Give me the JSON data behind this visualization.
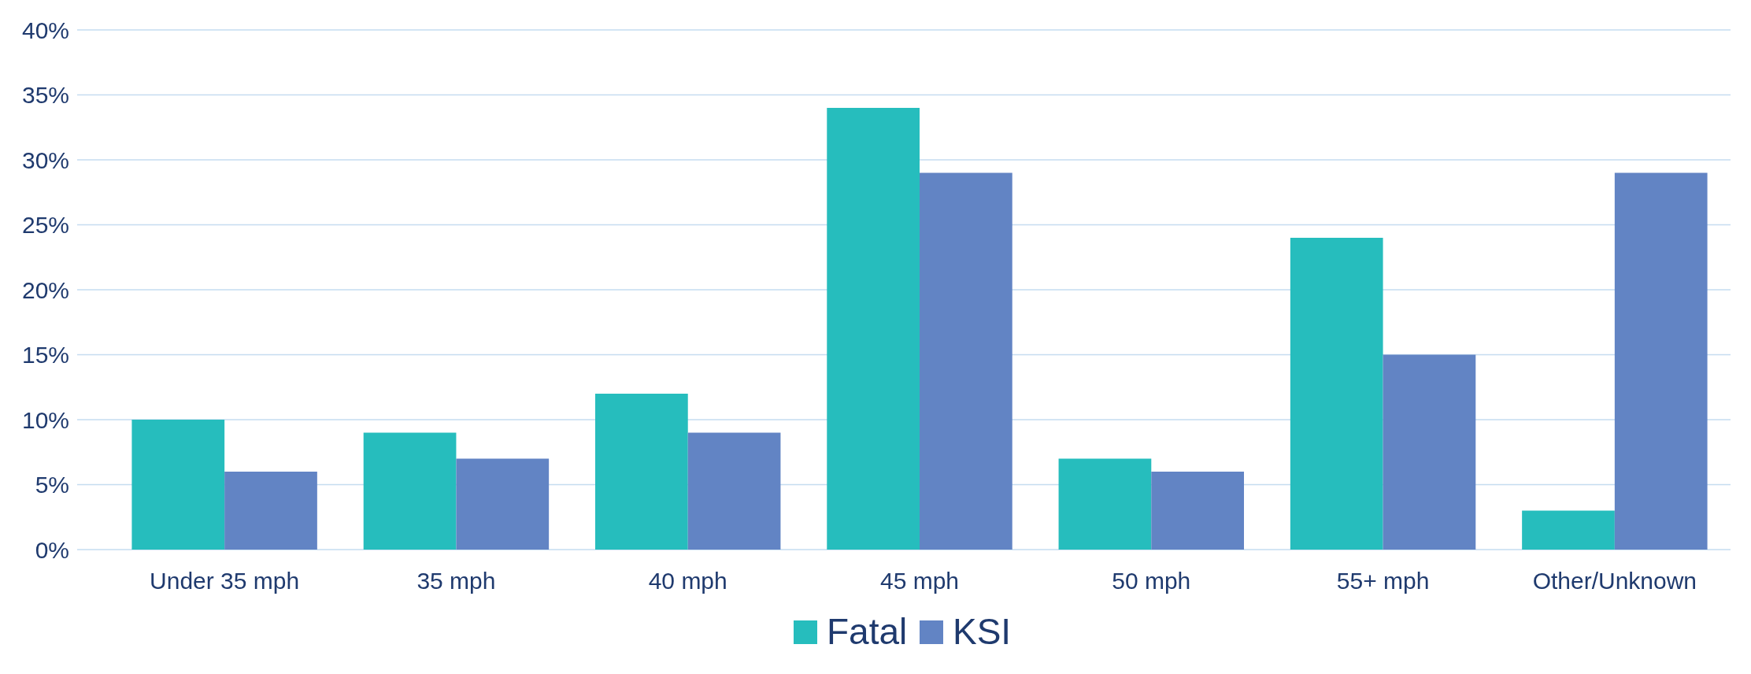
{
  "chart_data": {
    "type": "bar",
    "categories": [
      "Under 35 mph",
      "35 mph",
      "40 mph",
      "45 mph",
      "50 mph",
      "55+ mph",
      "Other/Unknown"
    ],
    "series": [
      {
        "name": "Fatal",
        "color": "#26bdbd",
        "values": [
          10,
          9,
          12,
          34,
          7,
          24,
          3
        ]
      },
      {
        "name": "KSI",
        "color": "#6284c4",
        "values": [
          6,
          7,
          9,
          29,
          6,
          15,
          29
        ]
      }
    ],
    "ylim": [
      0,
      40
    ],
    "yticks": [
      {
        "value": 0,
        "label": "0%"
      },
      {
        "value": 5,
        "label": "5%"
      },
      {
        "value": 10,
        "label": "10%"
      },
      {
        "value": 15,
        "label": "15%"
      },
      {
        "value": 20,
        "label": "20%"
      },
      {
        "value": 25,
        "label": "25%"
      },
      {
        "value": 30,
        "label": "30%"
      },
      {
        "value": 35,
        "label": "35%"
      },
      {
        "value": 40,
        "label": "40%"
      }
    ],
    "grid": "y",
    "legend": "bottom"
  }
}
